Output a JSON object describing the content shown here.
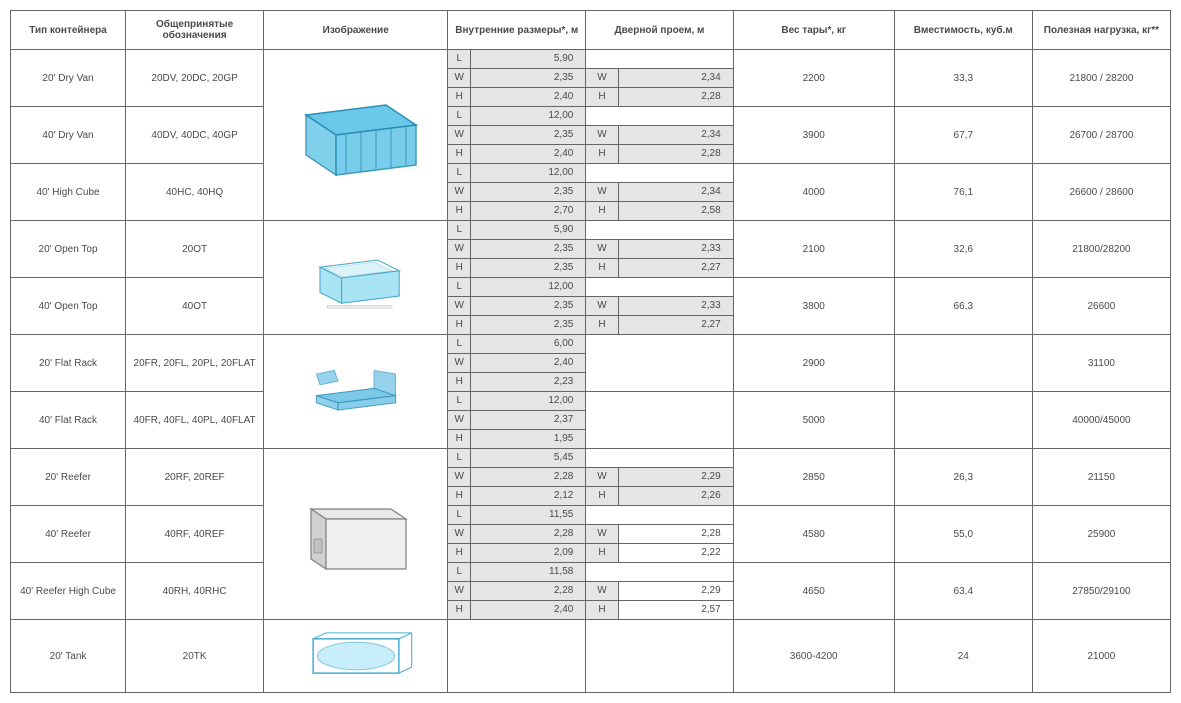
{
  "headers": {
    "type": "Тип контейнера",
    "abbr": "Общепринятые обозначения",
    "image": "Изображение",
    "internal": "Внутренние размеры*, м",
    "door": "Дверной проем, м",
    "tare": "Вес тары*, кг",
    "capacity": "Вместимость, куб.м",
    "payload": "Полезная нагрузка, кг**"
  },
  "rows": [
    {
      "type": "20' Dry Van",
      "abbr": "20DV, 20DC, 20GP",
      "L": "5,90",
      "W": "2,35",
      "H": "2,40",
      "dW": "2,34",
      "dH": "2,28",
      "tare": "2200",
      "cap": "33,3",
      "payload": "21800 / 28200",
      "img_group": 0
    },
    {
      "type": "40' Dry Van",
      "abbr": "40DV, 40DC, 40GP",
      "L": "12,00",
      "W": "2,35",
      "H": "2,40",
      "dW": "2,34",
      "dH": "2,28",
      "tare": "3900",
      "cap": "67,7",
      "payload": "26700 / 28700",
      "img_group": 0
    },
    {
      "type": "40' High Cube",
      "abbr": "40HC, 40HQ",
      "L": "12,00",
      "W": "2,35",
      "H": "2,70",
      "dW": "2,34",
      "dH": "2,58",
      "tare": "4000",
      "cap": "76,1",
      "payload": "26600 / 28600",
      "img_group": 0
    },
    {
      "type": "20' Open Top",
      "abbr": "20OT",
      "L": "5,90",
      "W": "2,35",
      "H": "2,35",
      "dW": "2,33",
      "dH": "2,27",
      "tare": "2100",
      "cap": "32,6",
      "payload": "21800/28200",
      "img_group": 1
    },
    {
      "type": "40' Open Top",
      "abbr": "40OT",
      "L": "12,00",
      "W": "2,35",
      "H": "2,35",
      "dW": "2,33",
      "dH": "2,27",
      "tare": "3800",
      "cap": "66,3",
      "payload": "26600",
      "img_group": 1
    },
    {
      "type": "20' Flat Rack",
      "abbr": "20FR, 20FL, 20PL, 20FLAT",
      "L": "6,00",
      "W": "2,40",
      "H": "2,23",
      "dW": "",
      "dH": "",
      "tare": "2900",
      "cap": "",
      "payload": "31100",
      "img_group": 2
    },
    {
      "type": "40' Flat Rack",
      "abbr": "40FR, 40FL, 40PL, 40FLAT",
      "L": "12,00",
      "W": "2,37",
      "H": "1,95",
      "dW": "",
      "dH": "",
      "tare": "5000",
      "cap": "",
      "payload": "40000/45000",
      "img_group": 2
    },
    {
      "type": "20' Reefer",
      "abbr": "20RF, 20REF",
      "L": "5,45",
      "W": "2,28",
      "H": "2,12",
      "dW": "2,29",
      "dH": "2,26",
      "tare": "2850",
      "cap": "26,3",
      "payload": "21150",
      "img_group": 3
    },
    {
      "type": "40' Reefer",
      "abbr": "40RF, 40REF",
      "L": "11,55",
      "W": "2,28",
      "H": "2,09",
      "dW": "2,28",
      "dH": "2,22",
      "door_white": true,
      "tare": "4580",
      "cap": "55,0",
      "payload": "25900",
      "img_group": 3
    },
    {
      "type": "40' Reefer High Cube",
      "abbr": "40RH, 40RHC",
      "L": "11,58",
      "W": "2,28",
      "H": "2,40",
      "dW": "2,29",
      "dH": "2,57",
      "door_white": true,
      "tare": "4650",
      "cap": "63,4",
      "payload": "27850/29100",
      "img_group": 3
    },
    {
      "type": "20' Tank",
      "abbr": "20TK",
      "L": "",
      "W": "",
      "H": "",
      "dW": "",
      "dH": "",
      "tare": "3600-4200",
      "cap": "24",
      "payload": "21000",
      "img_group": 4,
      "single_row": true
    }
  ],
  "images": [
    {
      "rows": 3,
      "shape": "dryvan",
      "colors": {
        "fill": "#6ac8e8",
        "stroke": "#2a8fb5"
      }
    },
    {
      "rows": 2,
      "shape": "opentop",
      "colors": {
        "fill": "#a8e4f4",
        "stroke": "#4aa8cc"
      }
    },
    {
      "rows": 2,
      "shape": "flatrack",
      "colors": {
        "fill": "#7cc8e8",
        "stroke": "#3a98c0"
      }
    },
    {
      "rows": 3,
      "shape": "reefer",
      "colors": {
        "fill": "#d0d0d0",
        "stroke": "#808080"
      }
    },
    {
      "rows": 1,
      "shape": "tank",
      "colors": {
        "fill": "#b0e8f8",
        "stroke": "#4ab0d0"
      }
    }
  ],
  "dim_labels": {
    "L": "L",
    "W": "W",
    "H": "H"
  },
  "colors": {
    "border": "#666666",
    "header_bg": "#ffffff",
    "dim_bg": "#e5e5e5",
    "text": "#4a4a4a"
  },
  "fontsizes": {
    "body": 10,
    "header": 10
  }
}
